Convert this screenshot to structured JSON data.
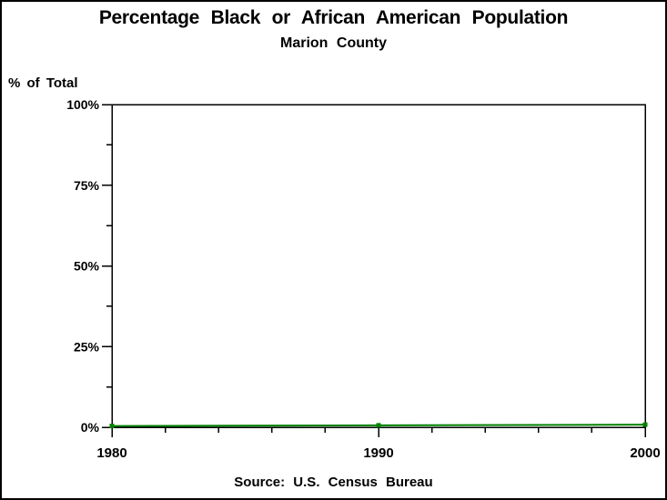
{
  "header": {
    "title": "Percentage Black or African American Population",
    "subtitle": "Marion County"
  },
  "axes": {
    "y_label": "% of Total"
  },
  "footer": {
    "source": "Source: U.S. Census Bureau"
  },
  "colors": {
    "line": "#008000",
    "axis": "#000000",
    "text": "#000000",
    "background": "#ffffff"
  },
  "chart_data": {
    "type": "line",
    "title": "Percentage Black or African American Population",
    "subtitle": "Marion County",
    "ylabel": "% of Total",
    "xlabel": "",
    "source": "Source: U.S. Census Bureau",
    "x": [
      1980,
      1990,
      2000
    ],
    "series": [
      {
        "color": "#008000",
        "marker": "square",
        "values": [
          0.4,
          0.6,
          0.8
        ]
      }
    ],
    "xlim": [
      1980,
      2000
    ],
    "ylim": [
      0,
      100
    ],
    "y_ticks": {
      "major_values": [
        0,
        25,
        50,
        75,
        100
      ],
      "major_labels": [
        "0%",
        "25%",
        "50%",
        "75%",
        "100%"
      ],
      "minor_values": [
        12.5,
        37.5,
        62.5,
        87.5
      ]
    },
    "x_ticks": {
      "major_values": [
        1980,
        1990,
        2000
      ],
      "major_labels": [
        "1980",
        "1990",
        "2000"
      ],
      "minor_step": 2
    },
    "grid": false,
    "legend": "none",
    "frame": true
  }
}
